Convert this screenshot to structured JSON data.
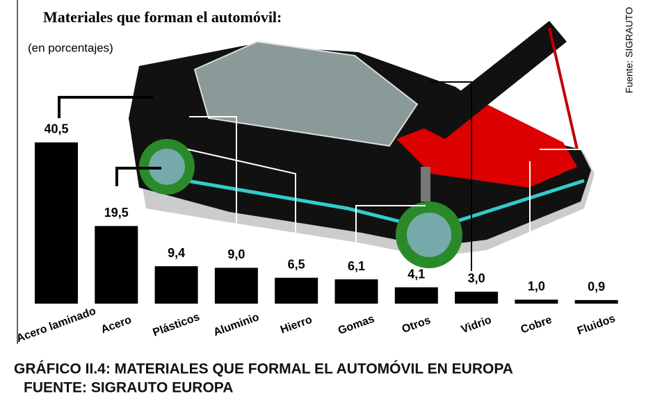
{
  "chart_data": {
    "type": "bar",
    "title": "Materiales que forman el automóvil:",
    "subtitle": "(en porcentajes)",
    "source": "Fuente: SIGRAUTO",
    "categories": [
      "Acero laminado",
      "Acero",
      "Plásticos",
      "Aluminio",
      "Hierro",
      "Gomas",
      "Otros",
      "Vidrio",
      "Cobre",
      "Fluidos"
    ],
    "values": [
      40.5,
      19.5,
      9.4,
      9.0,
      6.5,
      6.1,
      4.1,
      3.0,
      1.0,
      0.9
    ],
    "value_labels": [
      "40,5",
      "19,5",
      "9,4",
      "9,0",
      "6,5",
      "6,1",
      "4,1",
      "3,0",
      "1,0",
      "0,9"
    ],
    "color": "#000000"
  },
  "caption": {
    "line1": "GRÁFICO II.4: MATERIALES QUE FORMAL EL AUTOMÓVIL EN EUROPA",
    "line2": "FUENTE: SIGRAUTO EUROPA"
  }
}
